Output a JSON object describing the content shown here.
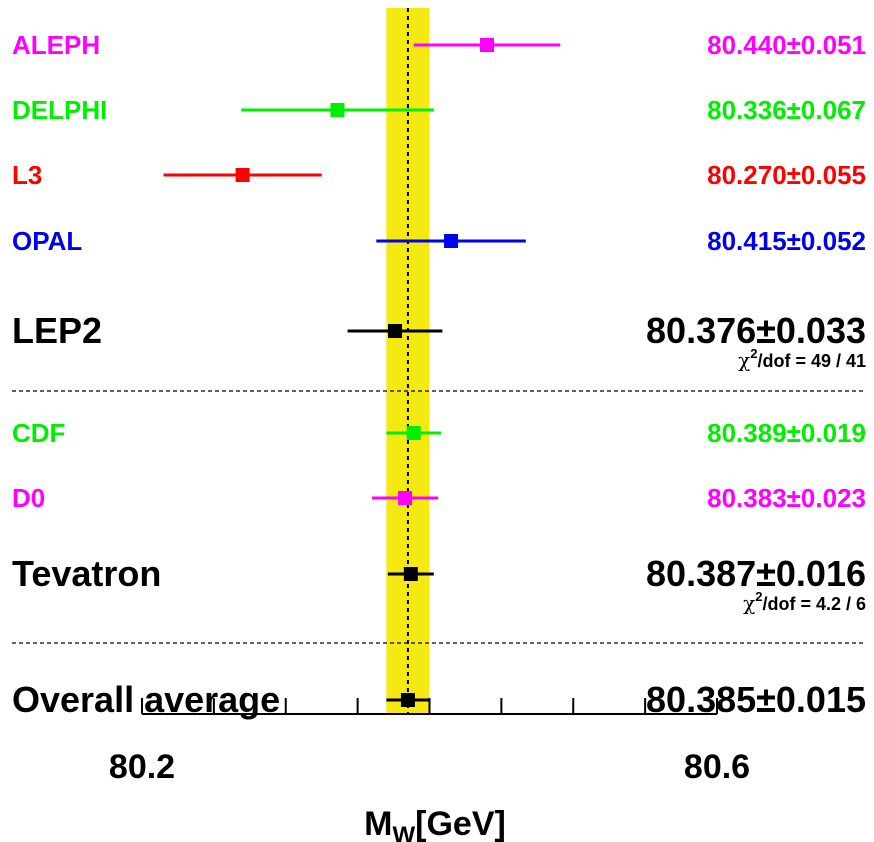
{
  "chart_data": {
    "type": "scatter",
    "title": "",
    "xlabel_main": "M",
    "xlabel_sub": "W",
    "xlabel_unit": "[GeV]",
    "xlim": [
      80.1,
      80.6
    ],
    "xticks": [
      {
        "value": 80.2,
        "label": "80.2"
      },
      {
        "value": 80.6,
        "label": "80.6"
      }
    ],
    "minor_ticks": [
      80.2,
      80.25,
      80.3,
      80.35,
      80.4,
      80.45,
      80.5,
      80.55,
      80.6
    ],
    "band": {
      "center": 80.385,
      "halfwidth": 0.015,
      "color": "#f5e912"
    },
    "entries": [
      {
        "name": "ALEPH",
        "mean": 80.44,
        "err": 0.051,
        "color": "#ff00ff",
        "label": "80.440±0.051",
        "big": false
      },
      {
        "name": "DELPHI",
        "mean": 80.336,
        "err": 0.067,
        "color": "#00ee00",
        "label": "80.336±0.067",
        "big": false
      },
      {
        "name": "L3",
        "mean": 80.27,
        "err": 0.055,
        "color": "#ff0000",
        "label": "80.270±0.055",
        "big": false
      },
      {
        "name": "OPAL",
        "mean": 80.415,
        "err": 0.052,
        "color": "#0000ee",
        "label": "80.415±0.052",
        "big": false
      },
      {
        "name": "LEP2",
        "mean": 80.376,
        "err": 0.033,
        "color": "#000000",
        "label": "80.376±0.033",
        "big": true,
        "chi2_label": "/dof =  49 / 41"
      },
      {
        "name": "CDF",
        "mean": 80.389,
        "err": 0.019,
        "color": "#00ee00",
        "label": "80.389±0.019",
        "big": false
      },
      {
        "name": "D0",
        "mean": 80.383,
        "err": 0.023,
        "color": "#ff00ff",
        "label": "80.383±0.023",
        "big": false
      },
      {
        "name": "Tevatron",
        "mean": 80.387,
        "err": 0.016,
        "color": "#000000",
        "label": "80.387±0.016",
        "big": true,
        "chi2_label": "/dof =   4.2 / 6"
      },
      {
        "name": "Overall average",
        "mean": 80.385,
        "err": 0.015,
        "color": "#000000",
        "label": "80.385±0.015",
        "big": true
      }
    ]
  }
}
